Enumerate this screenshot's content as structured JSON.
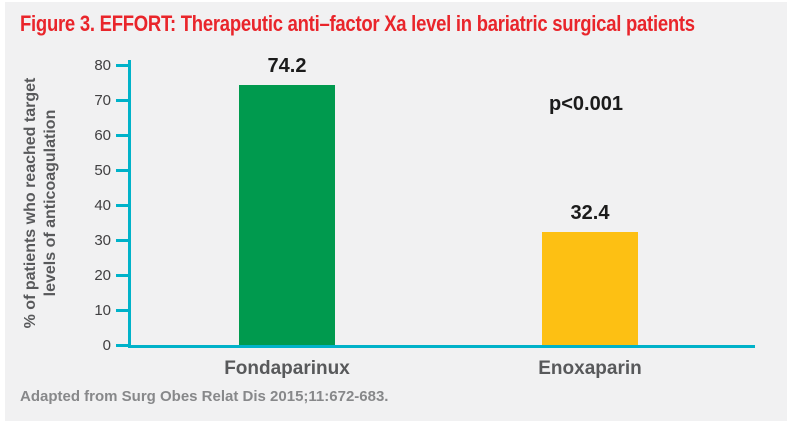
{
  "footer": "Adapted from Surg Obes Relat Dis 2015;11:672-683.",
  "colors": {
    "title_red": "#E9252B",
    "axis_teal": "#00B2C9",
    "panel_background": "#F1F1F2",
    "bar_green": "#009A4E",
    "bar_yellow": "#FDC013",
    "gray_text": "#58595B"
  },
  "chart_data": {
    "type": "bar",
    "title": "Figure 3. EFFORT: Therapeutic anti–factor Xa level in bariatric surgical patients",
    "categories": [
      "Fondaparinux",
      "Enoxaparin"
    ],
    "values": [
      74.2,
      32.4
    ],
    "bar_colors": [
      "#009A4E",
      "#FDC013"
    ],
    "annotation": "p<0.001",
    "xlabel": "",
    "ylabel": "% of patients who reached target levels of anticoagulation",
    "ylabel_lines": [
      "% of patients who reached target",
      "levels of anticoagulation"
    ],
    "yticks": [
      0,
      10,
      20,
      30,
      40,
      50,
      60,
      70,
      80
    ],
    "ylim": [
      0,
      80
    ],
    "grid": false,
    "legend": "none",
    "source": "Adapted from Surg Obes Relat Dis 2015;11:672-683."
  }
}
